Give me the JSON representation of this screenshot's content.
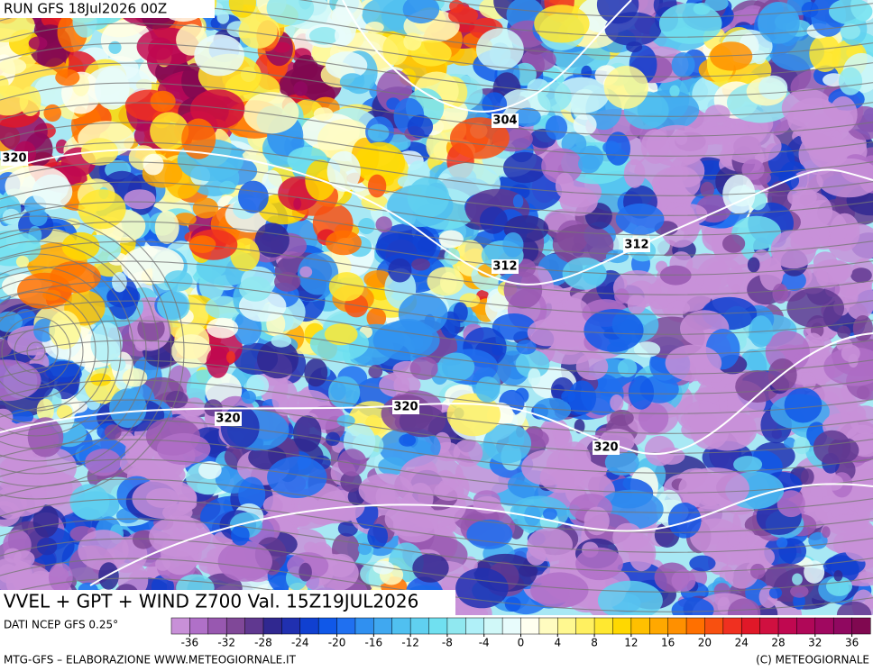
{
  "header": {
    "run": "RUN GFS 18Jul2026 00Z"
  },
  "map": {
    "title": "VVEL + GPT + WIND Z700 Val. 15Z19JUL2026",
    "contour_labels": [
      "320",
      "304",
      "312",
      "312",
      "320",
      "320",
      "320"
    ]
  },
  "colorbar": {
    "source": "DATI NCEP GFS 0.25°",
    "range": [
      -38,
      38
    ],
    "ticks": [
      -36,
      -32,
      -28,
      -24,
      -20,
      -16,
      -12,
      -8,
      -4,
      0,
      4,
      8,
      12,
      16,
      20,
      24,
      28,
      32,
      36
    ],
    "colors": [
      "#c890d8",
      "#b070c8",
      "#9858b0",
      "#804898",
      "#603890",
      "#302890",
      "#2030b0",
      "#1040d0",
      "#1058e8",
      "#2070f0",
      "#3090f0",
      "#40a8f0",
      "#50c0f0",
      "#60d0f0",
      "#70e0f0",
      "#90e8f0",
      "#b0f0f8",
      "#d0f8f8",
      "#e8fcfc",
      "#fffff0",
      "#fffcc0",
      "#fff890",
      "#fff060",
      "#ffe830",
      "#ffd800",
      "#ffc000",
      "#ffa800",
      "#ff9000",
      "#ff7000",
      "#f85010",
      "#f03020",
      "#e01828",
      "#d01040",
      "#c00850",
      "#b00858",
      "#a00860",
      "#900860",
      "#800850"
    ]
  },
  "footer": {
    "left": "MTG-GFS – ELABORAZIONE WWW.METEOGIORNALE.IT",
    "right": "(C) METEOGIORNALE"
  }
}
